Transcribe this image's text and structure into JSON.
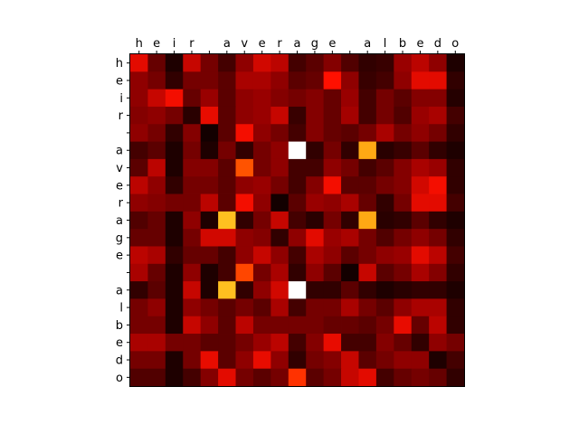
{
  "chart_data": {
    "type": "heatmap",
    "title": "",
    "xlabel": "",
    "ylabel": "",
    "x_categories": [
      "h",
      "e",
      "i",
      "r",
      " ",
      "a",
      "v",
      "e",
      "r",
      "a",
      "g",
      "e",
      " ",
      "a",
      "l",
      "b",
      "e",
      "d",
      "o"
    ],
    "y_categories": [
      "h",
      "e",
      "i",
      "r",
      " ",
      "a",
      "v",
      "e",
      "r",
      "a",
      "g",
      "e",
      " ",
      "a",
      "l",
      "b",
      "e",
      "d",
      "o"
    ],
    "x_axis_position": "top",
    "colormap": "hot",
    "color_stops": [
      "#0b0000",
      "#4a0000",
      "#a00000",
      "#ff1000",
      "#ff8000",
      "#ffff40",
      "#ffffff"
    ],
    "values": [
      [
        0.45,
        0.22,
        0.05,
        0.4,
        0.25,
        0.15,
        0.3,
        0.42,
        0.38,
        0.15,
        0.2,
        0.28,
        0.18,
        0.1,
        0.12,
        0.32,
        0.38,
        0.3,
        0.05
      ],
      [
        0.3,
        0.25,
        0.1,
        0.25,
        0.25,
        0.2,
        0.35,
        0.35,
        0.3,
        0.2,
        0.22,
        0.5,
        0.3,
        0.12,
        0.15,
        0.3,
        0.45,
        0.45,
        0.1
      ],
      [
        0.3,
        0.4,
        0.48,
        0.22,
        0.32,
        0.2,
        0.3,
        0.32,
        0.28,
        0.25,
        0.28,
        0.22,
        0.32,
        0.15,
        0.25,
        0.2,
        0.28,
        0.28,
        0.07
      ],
      [
        0.28,
        0.3,
        0.25,
        0.08,
        0.46,
        0.2,
        0.3,
        0.32,
        0.4,
        0.12,
        0.28,
        0.22,
        0.34,
        0.15,
        0.25,
        0.18,
        0.32,
        0.35,
        0.15
      ],
      [
        0.3,
        0.25,
        0.1,
        0.28,
        0.02,
        0.2,
        0.48,
        0.3,
        0.25,
        0.15,
        0.28,
        0.22,
        0.2,
        0.25,
        0.35,
        0.25,
        0.3,
        0.25,
        0.1
      ],
      [
        0.15,
        0.2,
        0.05,
        0.25,
        0.05,
        0.25,
        0.1,
        0.25,
        0.3,
        1.0,
        0.1,
        0.25,
        0.1,
        0.72,
        0.08,
        0.12,
        0.2,
        0.1,
        0.05
      ],
      [
        0.2,
        0.38,
        0.05,
        0.28,
        0.28,
        0.2,
        0.6,
        0.25,
        0.3,
        0.15,
        0.15,
        0.3,
        0.25,
        0.15,
        0.2,
        0.28,
        0.35,
        0.32,
        0.1
      ],
      [
        0.38,
        0.3,
        0.1,
        0.25,
        0.25,
        0.2,
        0.3,
        0.32,
        0.25,
        0.15,
        0.28,
        0.48,
        0.2,
        0.2,
        0.25,
        0.28,
        0.42,
        0.48,
        0.1
      ],
      [
        0.3,
        0.28,
        0.25,
        0.25,
        0.38,
        0.2,
        0.48,
        0.3,
        0.02,
        0.2,
        0.32,
        0.3,
        0.35,
        0.22,
        0.1,
        0.25,
        0.45,
        0.45,
        0.15
      ],
      [
        0.18,
        0.22,
        0.05,
        0.3,
        0.05,
        0.75,
        0.1,
        0.25,
        0.4,
        0.15,
        0.08,
        0.25,
        0.1,
        0.72,
        0.08,
        0.1,
        0.2,
        0.1,
        0.05
      ],
      [
        0.22,
        0.22,
        0.05,
        0.25,
        0.42,
        0.42,
        0.3,
        0.28,
        0.1,
        0.3,
        0.45,
        0.32,
        0.35,
        0.25,
        0.18,
        0.25,
        0.3,
        0.25,
        0.1
      ],
      [
        0.38,
        0.35,
        0.1,
        0.22,
        0.22,
        0.15,
        0.3,
        0.4,
        0.3,
        0.15,
        0.35,
        0.3,
        0.2,
        0.25,
        0.3,
        0.32,
        0.45,
        0.38,
        0.15
      ],
      [
        0.35,
        0.22,
        0.05,
        0.3,
        0.05,
        0.15,
        0.58,
        0.25,
        0.35,
        0.1,
        0.3,
        0.2,
        0.02,
        0.4,
        0.2,
        0.25,
        0.35,
        0.28,
        0.1
      ],
      [
        0.1,
        0.2,
        0.05,
        0.4,
        0.05,
        0.75,
        0.1,
        0.3,
        0.42,
        1.0,
        0.1,
        0.1,
        0.2,
        0.1,
        0.05,
        0.08,
        0.1,
        0.1,
        0.05
      ],
      [
        0.25,
        0.3,
        0.05,
        0.3,
        0.25,
        0.2,
        0.25,
        0.2,
        0.35,
        0.15,
        0.25,
        0.25,
        0.35,
        0.25,
        0.2,
        0.3,
        0.35,
        0.35,
        0.1
      ],
      [
        0.25,
        0.25,
        0.05,
        0.4,
        0.3,
        0.2,
        0.38,
        0.25,
        0.25,
        0.25,
        0.25,
        0.22,
        0.22,
        0.2,
        0.25,
        0.46,
        0.22,
        0.38,
        0.1
      ],
      [
        0.35,
        0.35,
        0.25,
        0.25,
        0.2,
        0.2,
        0.25,
        0.32,
        0.38,
        0.15,
        0.28,
        0.46,
        0.15,
        0.15,
        0.28,
        0.22,
        0.1,
        0.3,
        0.25
      ],
      [
        0.25,
        0.25,
        0.05,
        0.25,
        0.46,
        0.2,
        0.3,
        0.46,
        0.3,
        0.1,
        0.25,
        0.28,
        0.4,
        0.2,
        0.25,
        0.3,
        0.3,
        0.05,
        0.15
      ],
      [
        0.18,
        0.18,
        0.05,
        0.15,
        0.28,
        0.45,
        0.25,
        0.2,
        0.25,
        0.55,
        0.2,
        0.25,
        0.4,
        0.45,
        0.15,
        0.22,
        0.25,
        0.22,
        0.1
      ]
    ]
  }
}
